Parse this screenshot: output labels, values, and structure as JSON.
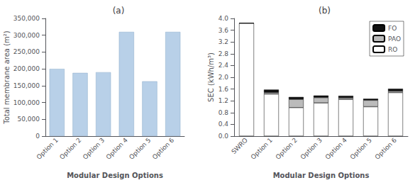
{
  "chart_data": [
    {
      "type": "bar",
      "title": "(a)",
      "categories": [
        "Option 1",
        "Option 2",
        "Option 3",
        "Option 4",
        "Option 5",
        "Option 6"
      ],
      "values": [
        200000,
        188000,
        190000,
        310000,
        163000,
        310000
      ],
      "color": "#b8d0e8",
      "xlabel": "Modular Design Options",
      "ylabel": "Total membrane area (m²)",
      "ylim": [
        0,
        350000
      ],
      "yticks": [
        0,
        {
          "value": 50000,
          "label": "50,000"
        },
        {
          "value": 100000,
          "label": "100,000"
        },
        {
          "value": 150000,
          "label": "150,000"
        },
        {
          "value": 200000,
          "label": "200,000"
        },
        {
          "value": 250000,
          "label": "250,000"
        },
        {
          "value": 300000,
          "label": "300,000"
        },
        {
          "value": 350000,
          "label": "350,000"
        }
      ],
      "grid": false
    },
    {
      "type": "bar",
      "title": "(b)",
      "stacked": true,
      "legend": "upper right",
      "categories": [
        "SWRO",
        "Option 1",
        "Option 2",
        "Option 3",
        "Option 4",
        "Option 5",
        "Option 6"
      ],
      "series": [
        {
          "name": "RO",
          "color": "#ffffff",
          "values": [
            3.84,
            1.43,
            0.97,
            1.13,
            1.25,
            1.0,
            1.48
          ]
        },
        {
          "name": "PAO",
          "color": "#bbbbbb",
          "values": [
            0.0,
            0.05,
            0.28,
            0.18,
            0.05,
            0.22,
            0.05
          ]
        },
        {
          "name": "FO",
          "color": "#111111",
          "values": [
            0.0,
            0.1,
            0.08,
            0.07,
            0.07,
            0.05,
            0.08
          ]
        }
      ],
      "xlabel": "Modular Design Options",
      "ylabel": "SEC (kWh/m³)",
      "ylim": [
        0,
        4.0
      ],
      "yticks": [
        {
          "value": 0,
          "label": "0.0"
        },
        0.4,
        0.8,
        1.2,
        1.6,
        {
          "value": 2,
          "label": "2.0"
        },
        2.4,
        2.8,
        3.2,
        3.6,
        {
          "value": 4,
          "label": "4.0"
        }
      ],
      "grid": false
    }
  ]
}
